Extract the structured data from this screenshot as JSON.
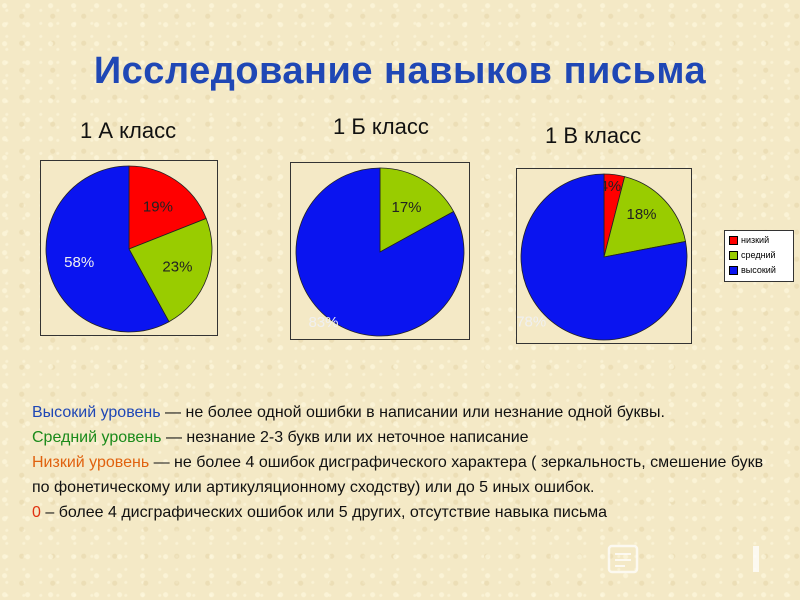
{
  "title": "Исследование навыков письма",
  "colors": {
    "low": "#ff0000",
    "medium": "#99cc00",
    "high": "#0a14f0",
    "title": "#1f47b5"
  },
  "legend": {
    "low": "низкий",
    "medium": "средний",
    "high": "высокий"
  },
  "chart_data": [
    {
      "type": "pie",
      "title": "1 А класс",
      "labels": [
        "низкий",
        "средний",
        "высокий"
      ],
      "values": [
        19,
        23,
        58
      ],
      "value_labels": [
        "19%",
        "23%",
        "58%"
      ]
    },
    {
      "type": "pie",
      "title": "1 Б класс",
      "labels": [
        "низкий",
        "средний",
        "высокий"
      ],
      "values": [
        0,
        17,
        83
      ],
      "value_labels": [
        "",
        "17%",
        "83%"
      ]
    },
    {
      "type": "pie",
      "title": "1 В класс",
      "labels": [
        "низкий",
        "средний",
        "высокий"
      ],
      "values": [
        4,
        18,
        78
      ],
      "value_labels": [
        "4%",
        "18%",
        "78%"
      ],
      "legend_position": "right"
    }
  ],
  "description": {
    "high_term": "Высокий уровень",
    "high_text": "— не более одной ошибки в написании или незнание одной буквы.",
    "medium_term": "Средний уровень",
    "medium_text": " — незнание 2-3 букв или их неточное написание",
    "low_term": "Низкий уровень",
    "low_text": " — не более 4 ошибок дисграфического характера ( зеркальность, смешение букв по фонетическому или артикуляционному сходству) или до 5 иных ошибок.",
    "zero_term": "0",
    "zero_text": " – более 4 дисграфических ошибок или 5 других, отсутствие навыка письма"
  }
}
